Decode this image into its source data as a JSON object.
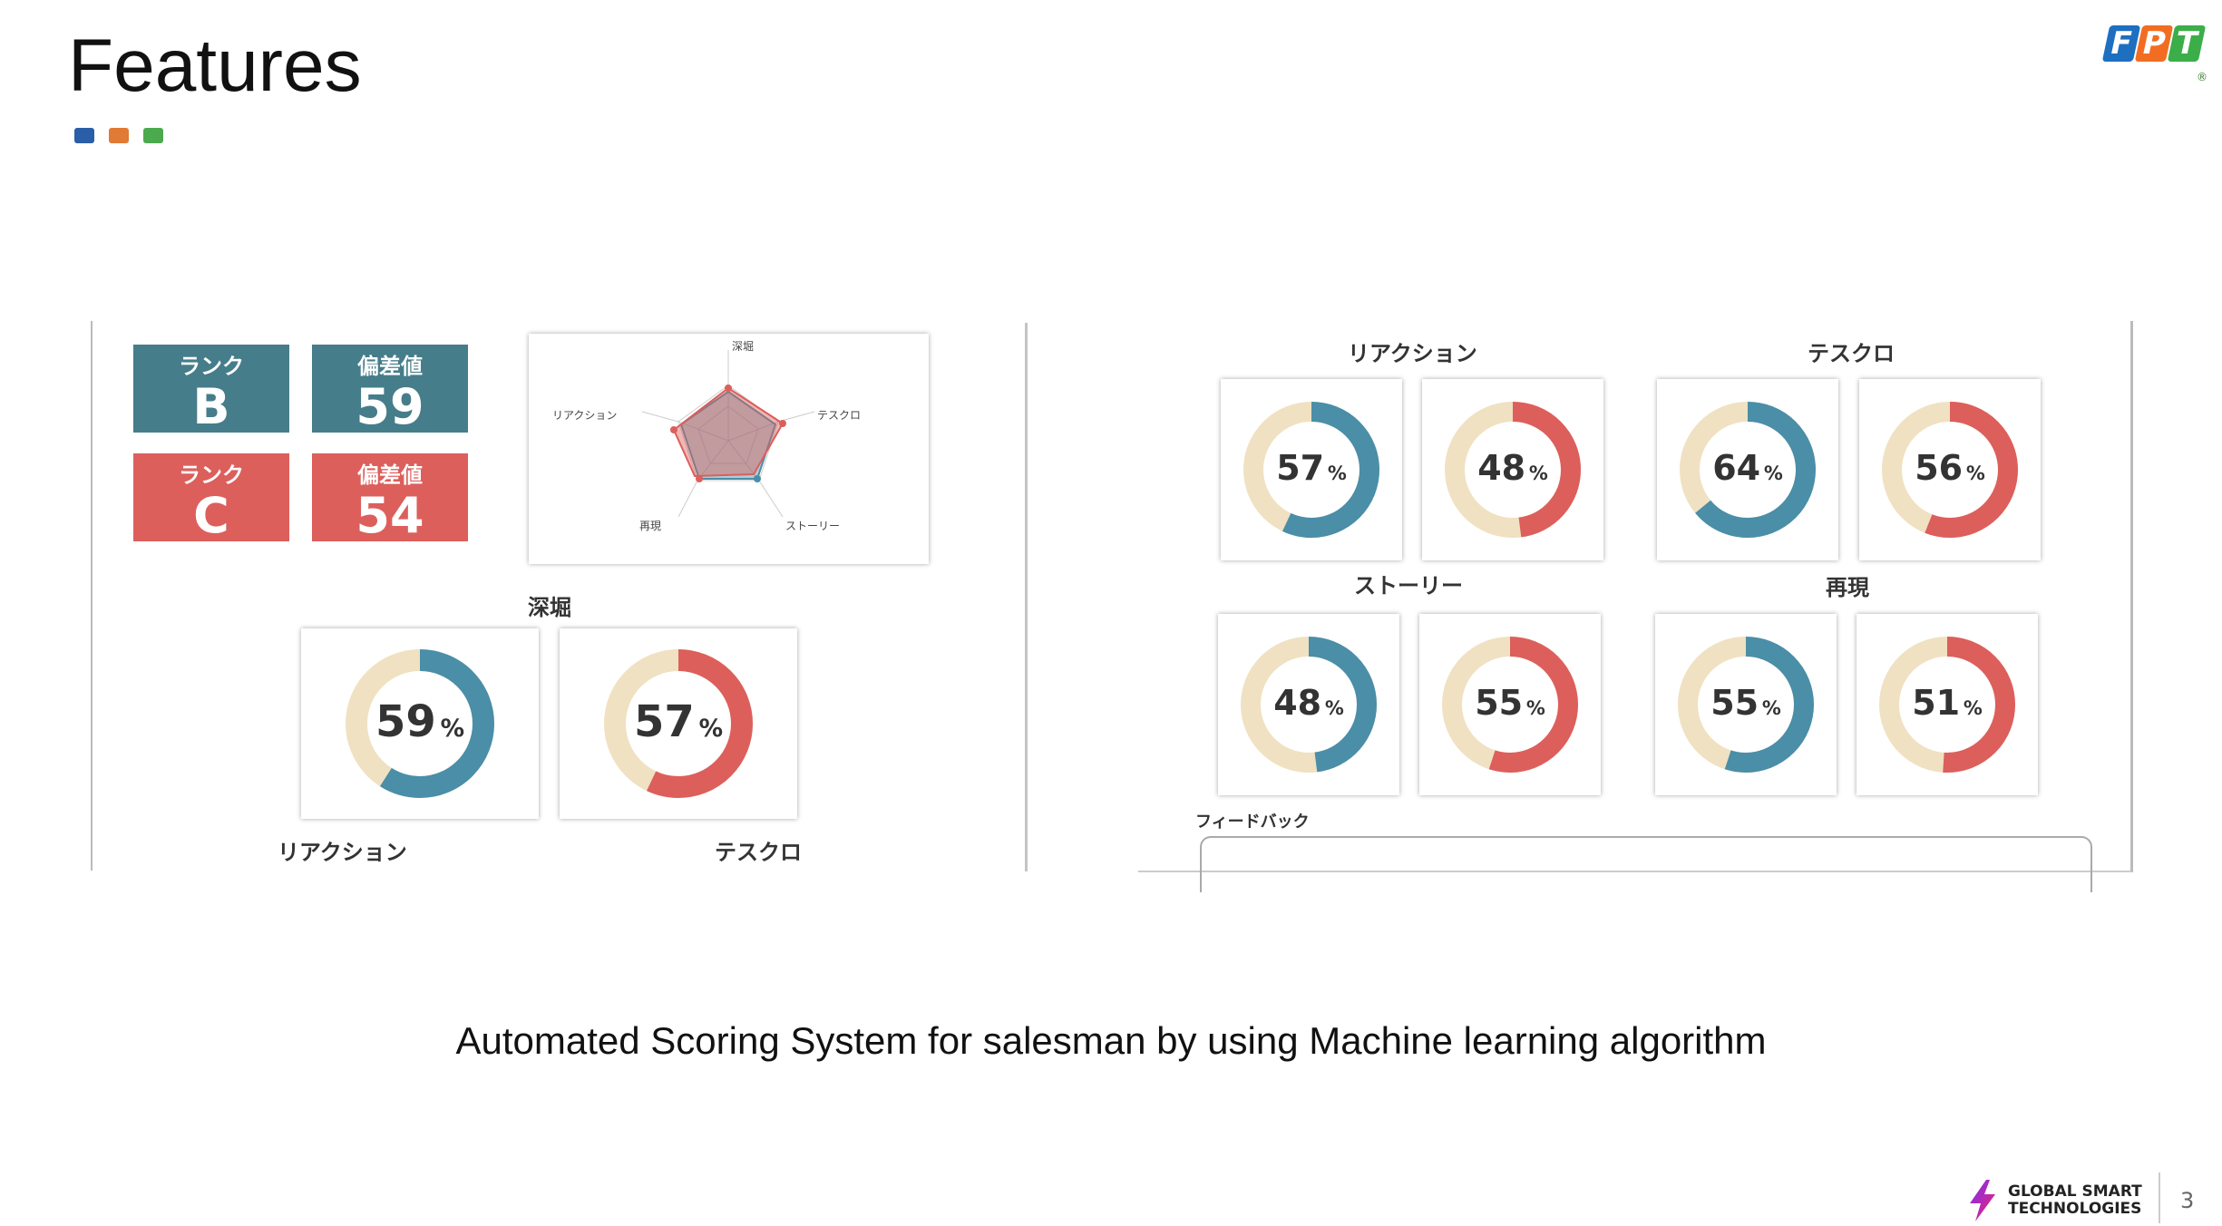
{
  "slide": {
    "title": "Features",
    "accent_colors": [
      "#2a5fa8",
      "#e07a34",
      "#4caa4e"
    ],
    "caption": "Automated Scoring System for salesman by using Machine learning algorithm",
    "page_number": "3"
  },
  "brand": {
    "fpt_letters": [
      "F",
      "P",
      "T"
    ],
    "fpt_colors": [
      "#1e6fc0",
      "#f26d21",
      "#3cae49"
    ],
    "reg_mark": "®",
    "gst_line1": "GLOBAL SMART",
    "gst_line2": "TECHNOLOGIES"
  },
  "left_panel": {
    "ranks": [
      {
        "label": "ランク",
        "value": "B",
        "color": "#467d8a"
      },
      {
        "label": "偏差値",
        "value": "59",
        "color": "#467d8a"
      },
      {
        "label": "ランク",
        "value": "C",
        "color": "#dc5f5c"
      },
      {
        "label": "偏差値",
        "value": "54",
        "color": "#dc5f5c"
      }
    ],
    "radar": {
      "axes": [
        "深堀",
        "テスクロ",
        "ストーリー",
        "再現",
        "リアクション"
      ]
    },
    "section_title": "深堀",
    "donuts": [
      {
        "value": 59,
        "unit": "%",
        "color": "#4a8ea8"
      },
      {
        "value": 57,
        "unit": "%",
        "color": "#dc5f5c"
      }
    ],
    "bottom_labels": [
      "リアクション",
      "テスクロ"
    ]
  },
  "right_panel": {
    "groups": [
      {
        "title": "リアクション",
        "donuts": [
          {
            "value": 57,
            "unit": "%",
            "color": "#4a8ea8"
          },
          {
            "value": 48,
            "unit": "%",
            "color": "#dc5f5c"
          }
        ]
      },
      {
        "title": "テスクロ",
        "donuts": [
          {
            "value": 64,
            "unit": "%",
            "color": "#4a8ea8"
          },
          {
            "value": 56,
            "unit": "%",
            "color": "#dc5f5c"
          }
        ]
      },
      {
        "title": "ストーリー",
        "donuts": [
          {
            "value": 48,
            "unit": "%",
            "color": "#4a8ea8"
          },
          {
            "value": 55,
            "unit": "%",
            "color": "#dc5f5c"
          }
        ]
      },
      {
        "title": "再現",
        "donuts": [
          {
            "value": 55,
            "unit": "%",
            "color": "#4a8ea8"
          },
          {
            "value": 51,
            "unit": "%",
            "color": "#dc5f5c"
          }
        ]
      }
    ],
    "feedback_label": "フィードバック"
  }
}
